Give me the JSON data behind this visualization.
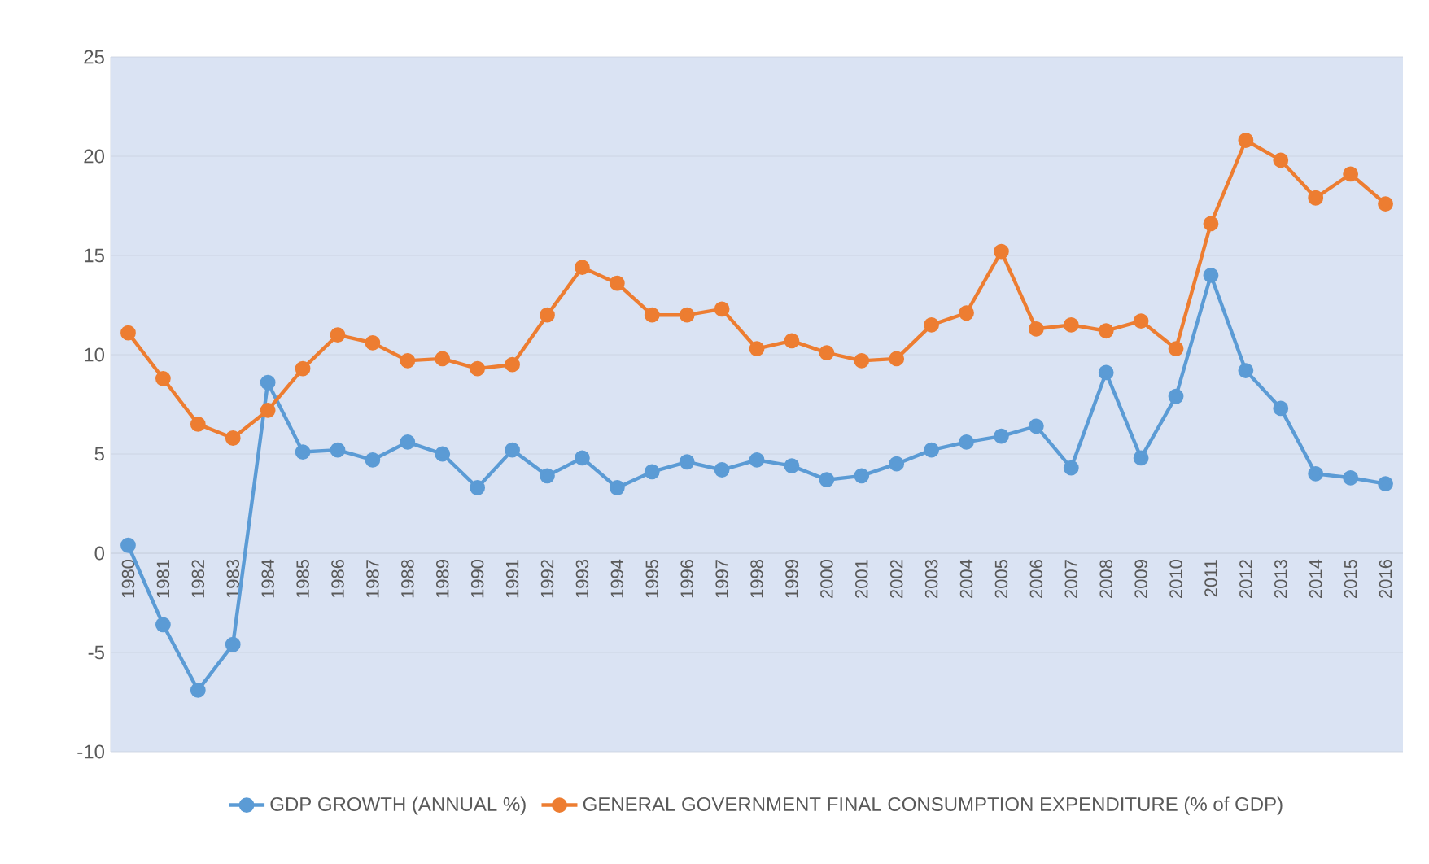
{
  "chart_data": {
    "type": "line",
    "categories": [
      "1980",
      "1981",
      "1982",
      "1983",
      "1984",
      "1985",
      "1986",
      "1987",
      "1988",
      "1989",
      "1990",
      "1991",
      "1992",
      "1993",
      "1994",
      "1995",
      "1996",
      "1997",
      "1998",
      "1999",
      "2000",
      "2001",
      "2002",
      "2003",
      "2004",
      "2005",
      "2006",
      "2007",
      "2008",
      "2009",
      "2010",
      "2011",
      "2012",
      "2013",
      "2014",
      "2015",
      "2016"
    ],
    "series": [
      {
        "name": "GDP GROWTH (ANNUAL %)",
        "color": "#5b9bd5",
        "values": [
          0.4,
          -3.6,
          -6.9,
          -4.6,
          8.6,
          5.1,
          5.2,
          4.7,
          5.6,
          5.0,
          3.3,
          5.2,
          3.9,
          4.8,
          3.3,
          4.1,
          4.6,
          4.2,
          4.7,
          4.4,
          3.7,
          3.9,
          4.5,
          5.2,
          5.6,
          5.9,
          6.4,
          4.3,
          9.1,
          4.8,
          7.9,
          14.0,
          9.2,
          7.3,
          4.0,
          3.8,
          3.5
        ]
      },
      {
        "name": "GENERAL GOVERNMENT FINAL CONSUMPTION EXPENDITURE (% of GDP)",
        "color": "#ed7d31",
        "values": [
          11.1,
          8.8,
          6.5,
          5.8,
          7.2,
          9.3,
          11.0,
          10.6,
          9.7,
          9.8,
          9.3,
          9.5,
          12.0,
          14.4,
          13.6,
          12.0,
          12.0,
          12.3,
          10.3,
          10.7,
          10.1,
          9.7,
          9.8,
          11.5,
          12.1,
          15.2,
          11.3,
          11.5,
          11.2,
          11.7,
          10.3,
          16.6,
          20.8,
          19.8,
          17.9,
          19.1,
          17.6
        ]
      }
    ],
    "ylim": [
      -10,
      25
    ],
    "yticks": [
      -10,
      -5,
      0,
      5,
      10,
      15,
      20,
      25
    ],
    "grid": "y",
    "legend": "bottom",
    "marker": "circle",
    "line_style": "solid"
  }
}
